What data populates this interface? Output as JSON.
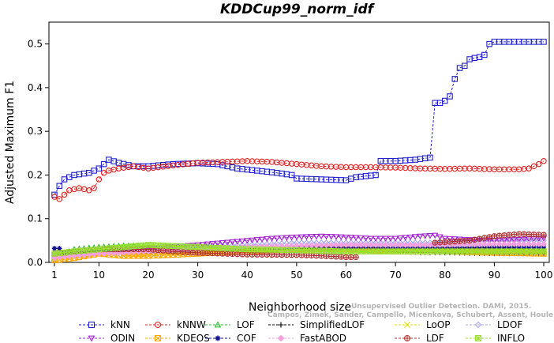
{
  "chart_data": {
    "type": "line",
    "title": "KDDCup99_norm_idf",
    "xlabel": "Neighborhood size",
    "ylabel": "Adjusted Maximum F1",
    "xlim": [
      1,
      100
    ],
    "ylim": [
      0,
      0.55
    ],
    "x_ticks": [
      "1",
      "10",
      "20",
      "30",
      "40",
      "50",
      "60",
      "70",
      "80",
      "90",
      "100"
    ],
    "y_ticks": [
      "0.0",
      "0.1",
      "0.2",
      "0.3",
      "0.4",
      "0.5"
    ],
    "watermark": [
      "Unsupervised Outlier Detection. DAMI, 2015.",
      "Campos, Zimek, Sander, Campello, Micenkova, Schubert, Assent, Houle"
    ],
    "legend_position": "bottom",
    "series": [
      {
        "name": "kNN",
        "color": "#1f1fd0",
        "marker": "square",
        "dashed": true,
        "pts": [
          [
            1,
            0.155
          ],
          [
            2,
            0.175
          ],
          [
            3,
            0.19
          ],
          [
            5,
            0.2
          ],
          [
            8,
            0.205
          ],
          [
            10,
            0.215
          ],
          [
            12,
            0.235
          ],
          [
            14,
            0.228
          ],
          [
            17,
            0.22
          ],
          [
            20,
            0.22
          ],
          [
            25,
            0.225
          ],
          [
            30,
            0.227
          ],
          [
            34,
            0.225
          ],
          [
            38,
            0.215
          ],
          [
            42,
            0.21
          ],
          [
            46,
            0.205
          ],
          [
            49,
            0.2
          ],
          [
            50,
            0.192
          ],
          [
            55,
            0.19
          ],
          [
            60,
            0.188
          ],
          [
            62,
            0.195
          ],
          [
            66,
            0.2
          ],
          [
            67,
            0.232
          ],
          [
            70,
            0.232
          ],
          [
            74,
            0.235
          ],
          [
            77,
            0.24
          ],
          [
            78,
            0.365
          ],
          [
            79,
            0.365
          ],
          [
            80,
            0.37
          ],
          [
            81,
            0.38
          ],
          [
            82,
            0.42
          ],
          [
            83,
            0.445
          ],
          [
            84,
            0.45
          ],
          [
            85,
            0.465
          ],
          [
            86,
            0.468
          ],
          [
            87,
            0.47
          ],
          [
            88,
            0.475
          ],
          [
            89,
            0.5
          ],
          [
            90,
            0.505
          ],
          [
            95,
            0.505
          ],
          [
            100,
            0.505
          ]
        ]
      },
      {
        "name": "kNNW",
        "color": "#e02020",
        "marker": "circle",
        "dashed": true,
        "pts": [
          [
            1,
            0.15
          ],
          [
            2,
            0.145
          ],
          [
            3,
            0.155
          ],
          [
            4,
            0.165
          ],
          [
            6,
            0.17
          ],
          [
            8,
            0.165
          ],
          [
            9,
            0.17
          ],
          [
            10,
            0.19
          ],
          [
            11,
            0.205
          ],
          [
            12,
            0.21
          ],
          [
            14,
            0.215
          ],
          [
            17,
            0.22
          ],
          [
            20,
            0.215
          ],
          [
            25,
            0.222
          ],
          [
            30,
            0.228
          ],
          [
            35,
            0.23
          ],
          [
            40,
            0.232
          ],
          [
            45,
            0.23
          ],
          [
            50,
            0.225
          ],
          [
            55,
            0.22
          ],
          [
            60,
            0.218
          ],
          [
            65,
            0.218
          ],
          [
            70,
            0.217
          ],
          [
            75,
            0.215
          ],
          [
            80,
            0.214
          ],
          [
            85,
            0.215
          ],
          [
            90,
            0.213
          ],
          [
            95,
            0.213
          ],
          [
            97,
            0.215
          ],
          [
            98,
            0.22
          ],
          [
            99,
            0.225
          ],
          [
            100,
            0.232
          ]
        ]
      },
      {
        "name": "LOF",
        "color": "#2ebd2e",
        "marker": "triangle-up",
        "dashed": true,
        "pts": [
          [
            1,
            0.01
          ],
          [
            3,
            0.02
          ],
          [
            5,
            0.03
          ],
          [
            10,
            0.035
          ],
          [
            15,
            0.038
          ],
          [
            20,
            0.038
          ],
          [
            25,
            0.036
          ],
          [
            30,
            0.035
          ],
          [
            40,
            0.033
          ],
          [
            50,
            0.032
          ],
          [
            60,
            0.032
          ],
          [
            70,
            0.03
          ],
          [
            80,
            0.03
          ],
          [
            90,
            0.028
          ],
          [
            100,
            0.028
          ]
        ]
      },
      {
        "name": "SimplifiedLOF",
        "color": "#000000",
        "marker": "plus",
        "dashed": true,
        "pts": [
          [
            1,
            0.02
          ],
          [
            5,
            0.025
          ],
          [
            10,
            0.028
          ],
          [
            20,
            0.03
          ],
          [
            30,
            0.03
          ],
          [
            40,
            0.03
          ],
          [
            50,
            0.028
          ],
          [
            60,
            0.026
          ],
          [
            70,
            0.024
          ],
          [
            80,
            0.022
          ],
          [
            90,
            0.02
          ],
          [
            100,
            0.02
          ]
        ]
      },
      {
        "name": "LoOP",
        "color": "#e0e000",
        "marker": "x",
        "dashed": true,
        "pts": [
          [
            1,
            0.01
          ],
          [
            5,
            0.015
          ],
          [
            10,
            0.02
          ],
          [
            15,
            0.015
          ],
          [
            20,
            0.02
          ],
          [
            30,
            0.025
          ],
          [
            40,
            0.03
          ],
          [
            50,
            0.03
          ],
          [
            60,
            0.03
          ],
          [
            70,
            0.03
          ],
          [
            80,
            0.028
          ],
          [
            90,
            0.028
          ],
          [
            100,
            0.025
          ]
        ]
      },
      {
        "name": "LDOF",
        "color": "#a8a8f0",
        "marker": "diamond",
        "dashed": true,
        "pts": [
          [
            1,
            0.015
          ],
          [
            5,
            0.02
          ],
          [
            10,
            0.025
          ],
          [
            20,
            0.03
          ],
          [
            30,
            0.035
          ],
          [
            40,
            0.04
          ],
          [
            50,
            0.045
          ],
          [
            60,
            0.045
          ],
          [
            70,
            0.045
          ],
          [
            80,
            0.045
          ],
          [
            90,
            0.05
          ],
          [
            100,
            0.05
          ]
        ]
      },
      {
        "name": "ODIN",
        "color": "#a020d0",
        "marker": "triangle-down",
        "dashed": true,
        "pts": [
          [
            1,
            0.01
          ],
          [
            5,
            0.02
          ],
          [
            10,
            0.025
          ],
          [
            15,
            0.028
          ],
          [
            20,
            0.032
          ],
          [
            30,
            0.04
          ],
          [
            40,
            0.05
          ],
          [
            45,
            0.055
          ],
          [
            50,
            0.058
          ],
          [
            55,
            0.06
          ],
          [
            60,
            0.058
          ],
          [
            65,
            0.055
          ],
          [
            70,
            0.055
          ],
          [
            75,
            0.06
          ],
          [
            78,
            0.062
          ],
          [
            80,
            0.055
          ],
          [
            85,
            0.052
          ],
          [
            90,
            0.05
          ],
          [
            100,
            0.055
          ]
        ]
      },
      {
        "name": "KDEOS",
        "color": "#ffa500",
        "marker": "square-x",
        "dashed": true,
        "pts": [
          [
            1,
            0.005
          ],
          [
            5,
            0.01
          ],
          [
            10,
            0.02
          ],
          [
            15,
            0.015
          ],
          [
            20,
            0.015
          ],
          [
            30,
            0.02
          ],
          [
            40,
            0.025
          ],
          [
            50,
            0.03
          ],
          [
            60,
            0.03
          ],
          [
            70,
            0.025
          ],
          [
            80,
            0.025
          ],
          [
            90,
            0.022
          ],
          [
            100,
            0.02
          ]
        ]
      },
      {
        "name": "COF",
        "color": "#10108a",
        "marker": "star",
        "dashed": true,
        "pts": [
          [
            1,
            0.032
          ],
          [
            2,
            0.032
          ],
          [
            3,
            0.02
          ],
          [
            5,
            0.018
          ],
          [
            10,
            0.025
          ],
          [
            20,
            0.025
          ],
          [
            30,
            0.03
          ],
          [
            40,
            0.032
          ],
          [
            50,
            0.035
          ],
          [
            60,
            0.035
          ],
          [
            70,
            0.035
          ],
          [
            80,
            0.035
          ],
          [
            90,
            0.035
          ],
          [
            100,
            0.035
          ]
        ]
      },
      {
        "name": "FastABOD",
        "color": "#f4a0e0",
        "marker": "diamond-filled",
        "dashed": true,
        "pts": [
          [
            1,
            0.01
          ],
          [
            5,
            0.015
          ],
          [
            10,
            0.02
          ],
          [
            20,
            0.025
          ],
          [
            30,
            0.03
          ],
          [
            40,
            0.035
          ],
          [
            50,
            0.038
          ],
          [
            60,
            0.04
          ],
          [
            70,
            0.04
          ],
          [
            80,
            0.04
          ],
          [
            90,
            0.042
          ],
          [
            100,
            0.042
          ]
        ]
      },
      {
        "name": "LDF",
        "color": "#b03030",
        "marker": "circle-plus",
        "dashed": true,
        "pts": [
          [
            1,
            0.02
          ],
          [
            5,
            0.025
          ],
          [
            10,
            0.03
          ],
          [
            20,
            0.03
          ],
          [
            25,
            0.025
          ],
          [
            30,
            0.022
          ],
          [
            35,
            0.02
          ],
          [
            40,
            0.018
          ],
          [
            50,
            0.017
          ],
          [
            55,
            0.015
          ],
          [
            60,
            0.012
          ],
          [
            62,
            0.012
          ]
        ],
        "pts2": [
          [
            78,
            0.045
          ],
          [
            85,
            0.05
          ],
          [
            90,
            0.06
          ],
          [
            95,
            0.065
          ],
          [
            100,
            0.063
          ]
        ]
      },
      {
        "name": "INFLO",
        "color": "#98e030",
        "marker": "square-star",
        "dashed": true,
        "pts": [
          [
            1,
            0.02
          ],
          [
            5,
            0.025
          ],
          [
            10,
            0.03
          ],
          [
            15,
            0.035
          ],
          [
            20,
            0.04
          ],
          [
            30,
            0.035
          ],
          [
            40,
            0.03
          ],
          [
            50,
            0.028
          ],
          [
            60,
            0.025
          ],
          [
            70,
            0.025
          ],
          [
            80,
            0.025
          ],
          [
            90,
            0.025
          ],
          [
            100,
            0.025
          ]
        ]
      }
    ]
  }
}
